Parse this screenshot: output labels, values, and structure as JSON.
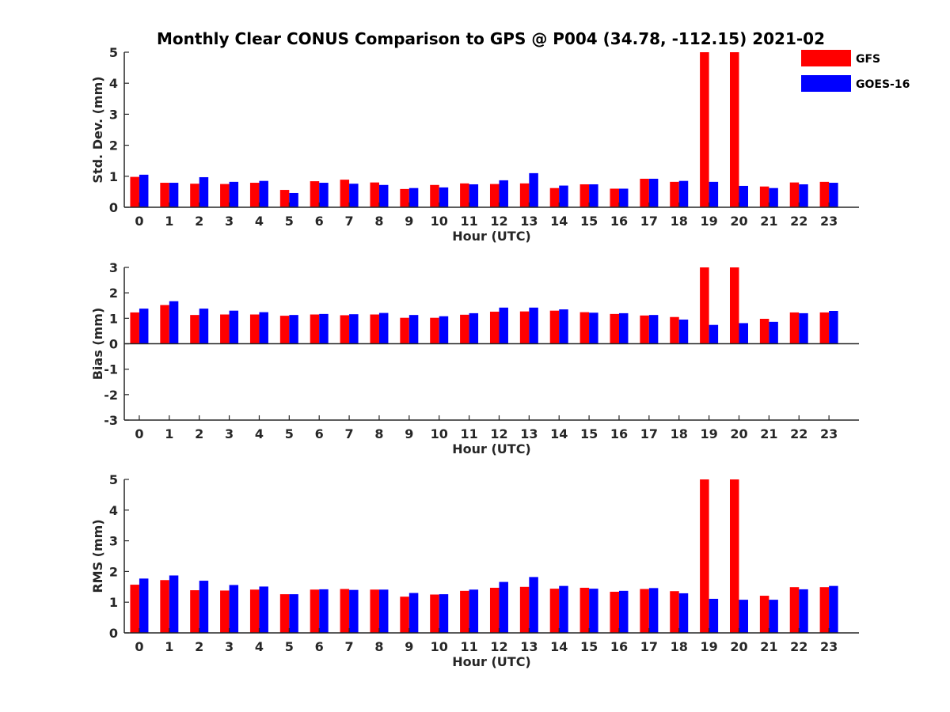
{
  "title": "Monthly Clear CONUS Comparison to GPS @ P004 (34.78, -112.15) 2021-02",
  "colors": {
    "gfs": "#ff0000",
    "goes": "#0000ff",
    "axis": "#262626"
  },
  "legend": {
    "placement": "top-right",
    "entries": [
      "GFS",
      "GOES-16"
    ]
  },
  "chart_data": [
    {
      "type": "bar",
      "title": "Monthly Clear CONUS Comparison to GPS @ P004 (34.78, -112.15) 2021-02",
      "xlabel": "Hour (UTC)",
      "ylabel": "Std. Dev. (mm)",
      "ylim": [
        0,
        5
      ],
      "yticks": [
        0,
        1,
        2,
        3,
        4,
        5
      ],
      "ytick_labels": [
        "0",
        "1",
        "2",
        "3",
        "4",
        "5"
      ],
      "categories": [
        "0",
        "1",
        "2",
        "3",
        "4",
        "5",
        "6",
        "7",
        "8",
        "9",
        "10",
        "11",
        "12",
        "13",
        "14",
        "15",
        "16",
        "17",
        "18",
        "19",
        "20",
        "21",
        "22",
        "23"
      ],
      "grid": false,
      "series": [
        {
          "name": "GFS",
          "values": [
            0.98,
            0.79,
            0.76,
            0.75,
            0.79,
            0.56,
            0.84,
            0.89,
            0.8,
            0.59,
            0.72,
            0.77,
            0.75,
            0.77,
            0.62,
            0.74,
            0.6,
            0.92,
            0.82,
            5.0,
            5.0,
            0.67,
            0.8,
            0.82
          ]
        },
        {
          "name": "GOES-16",
          "values": [
            1.05,
            0.79,
            0.97,
            0.82,
            0.85,
            0.46,
            0.79,
            0.76,
            0.72,
            0.62,
            0.64,
            0.74,
            0.87,
            1.1,
            0.7,
            0.74,
            0.6,
            0.92,
            0.85,
            0.82,
            0.69,
            0.62,
            0.74,
            0.79
          ]
        }
      ]
    },
    {
      "type": "bar",
      "xlabel": "Hour (UTC)",
      "ylabel": "Bias (mm)",
      "ylim": [
        -3,
        3
      ],
      "yticks": [
        -3,
        -2,
        -1,
        0,
        1,
        2,
        3
      ],
      "ytick_labels": [
        "-3",
        "-2",
        "-1",
        "0",
        "1",
        "2",
        "3"
      ],
      "categories": [
        "0",
        "1",
        "2",
        "3",
        "4",
        "5",
        "6",
        "7",
        "8",
        "9",
        "10",
        "11",
        "12",
        "13",
        "14",
        "15",
        "16",
        "17",
        "18",
        "19",
        "20",
        "21",
        "22",
        "23"
      ],
      "grid": false,
      "series": [
        {
          "name": "GFS",
          "values": [
            1.23,
            1.52,
            1.13,
            1.15,
            1.15,
            1.1,
            1.15,
            1.12,
            1.15,
            1.02,
            1.02,
            1.14,
            1.26,
            1.27,
            1.3,
            1.24,
            1.17,
            1.11,
            1.05,
            3.0,
            3.0,
            0.98,
            1.23,
            1.23
          ]
        },
        {
          "name": "GOES-16",
          "values": [
            1.38,
            1.67,
            1.38,
            1.3,
            1.24,
            1.13,
            1.17,
            1.16,
            1.21,
            1.13,
            1.08,
            1.2,
            1.42,
            1.42,
            1.35,
            1.22,
            1.2,
            1.13,
            0.95,
            0.74,
            0.81,
            0.86,
            1.2,
            1.29
          ]
        }
      ]
    },
    {
      "type": "bar",
      "xlabel": "Hour (UTC)",
      "ylabel": "RMS (mm)",
      "ylim": [
        0,
        5
      ],
      "yticks": [
        0,
        1,
        2,
        3,
        4,
        5
      ],
      "ytick_labels": [
        "0",
        "1",
        "2",
        "3",
        "4",
        "5"
      ],
      "categories": [
        "0",
        "1",
        "2",
        "3",
        "4",
        "5",
        "6",
        "7",
        "8",
        "9",
        "10",
        "11",
        "12",
        "13",
        "14",
        "15",
        "16",
        "17",
        "18",
        "19",
        "20",
        "21",
        "22",
        "23"
      ],
      "grid": false,
      "series": [
        {
          "name": "GFS",
          "values": [
            1.57,
            1.72,
            1.39,
            1.38,
            1.41,
            1.26,
            1.41,
            1.43,
            1.41,
            1.18,
            1.25,
            1.37,
            1.47,
            1.5,
            1.44,
            1.47,
            1.34,
            1.43,
            1.36,
            5.0,
            5.0,
            1.21,
            1.49,
            1.49
          ]
        },
        {
          "name": "GOES-16",
          "values": [
            1.77,
            1.87,
            1.7,
            1.56,
            1.51,
            1.26,
            1.42,
            1.4,
            1.41,
            1.3,
            1.26,
            1.41,
            1.66,
            1.82,
            1.53,
            1.44,
            1.37,
            1.46,
            1.29,
            1.11,
            1.08,
            1.08,
            1.42,
            1.53
          ]
        }
      ]
    }
  ]
}
